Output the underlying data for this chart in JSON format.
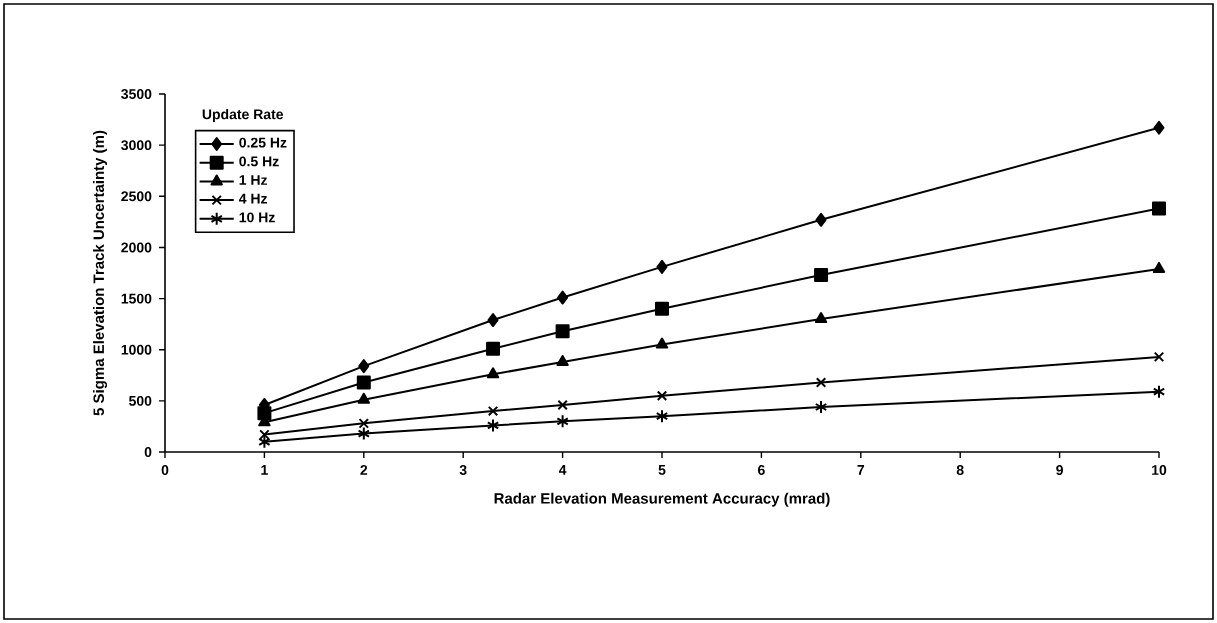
{
  "chart_data": {
    "type": "line",
    "xlabel": "Radar Elevation Measurement Accuracy (mrad)",
    "ylabel": "5 Sigma Elevation Track Uncertainty (m)",
    "legend_title": "Update Rate",
    "legend": "top left",
    "grid": false,
    "line_style": "solid",
    "x": [
      1,
      2,
      3.3,
      4,
      5,
      6.6,
      10
    ],
    "xlim": [
      0,
      10
    ],
    "xticks": [
      0,
      1,
      2,
      3,
      4,
      5,
      6,
      7,
      8,
      9,
      10
    ],
    "ylim": [
      0,
      3500
    ],
    "yticks": [
      0,
      500,
      1000,
      1500,
      2000,
      2500,
      3000,
      3500
    ],
    "series": [
      {
        "name": "0.25 Hz",
        "color": "#000000",
        "marker": "diamond",
        "values": [
          460,
          840,
          1290,
          1510,
          1810,
          2270,
          3170
        ]
      },
      {
        "name": "0.5 Hz",
        "color": "#000000",
        "marker": "square",
        "values": [
          380,
          680,
          1010,
          1180,
          1400,
          1730,
          2380
        ]
      },
      {
        "name": "1 Hz",
        "color": "#000000",
        "marker": "triangle",
        "values": [
          290,
          510,
          760,
          880,
          1050,
          1300,
          1790
        ]
      },
      {
        "name": "4 Hz",
        "color": "#000000",
        "marker": "cross",
        "values": [
          170,
          280,
          400,
          460,
          550,
          680,
          930
        ]
      },
      {
        "name": "10 Hz",
        "color": "#000000",
        "marker": "cross",
        "values": [
          100,
          180,
          260,
          300,
          350,
          440,
          590
        ]
      }
    ]
  }
}
